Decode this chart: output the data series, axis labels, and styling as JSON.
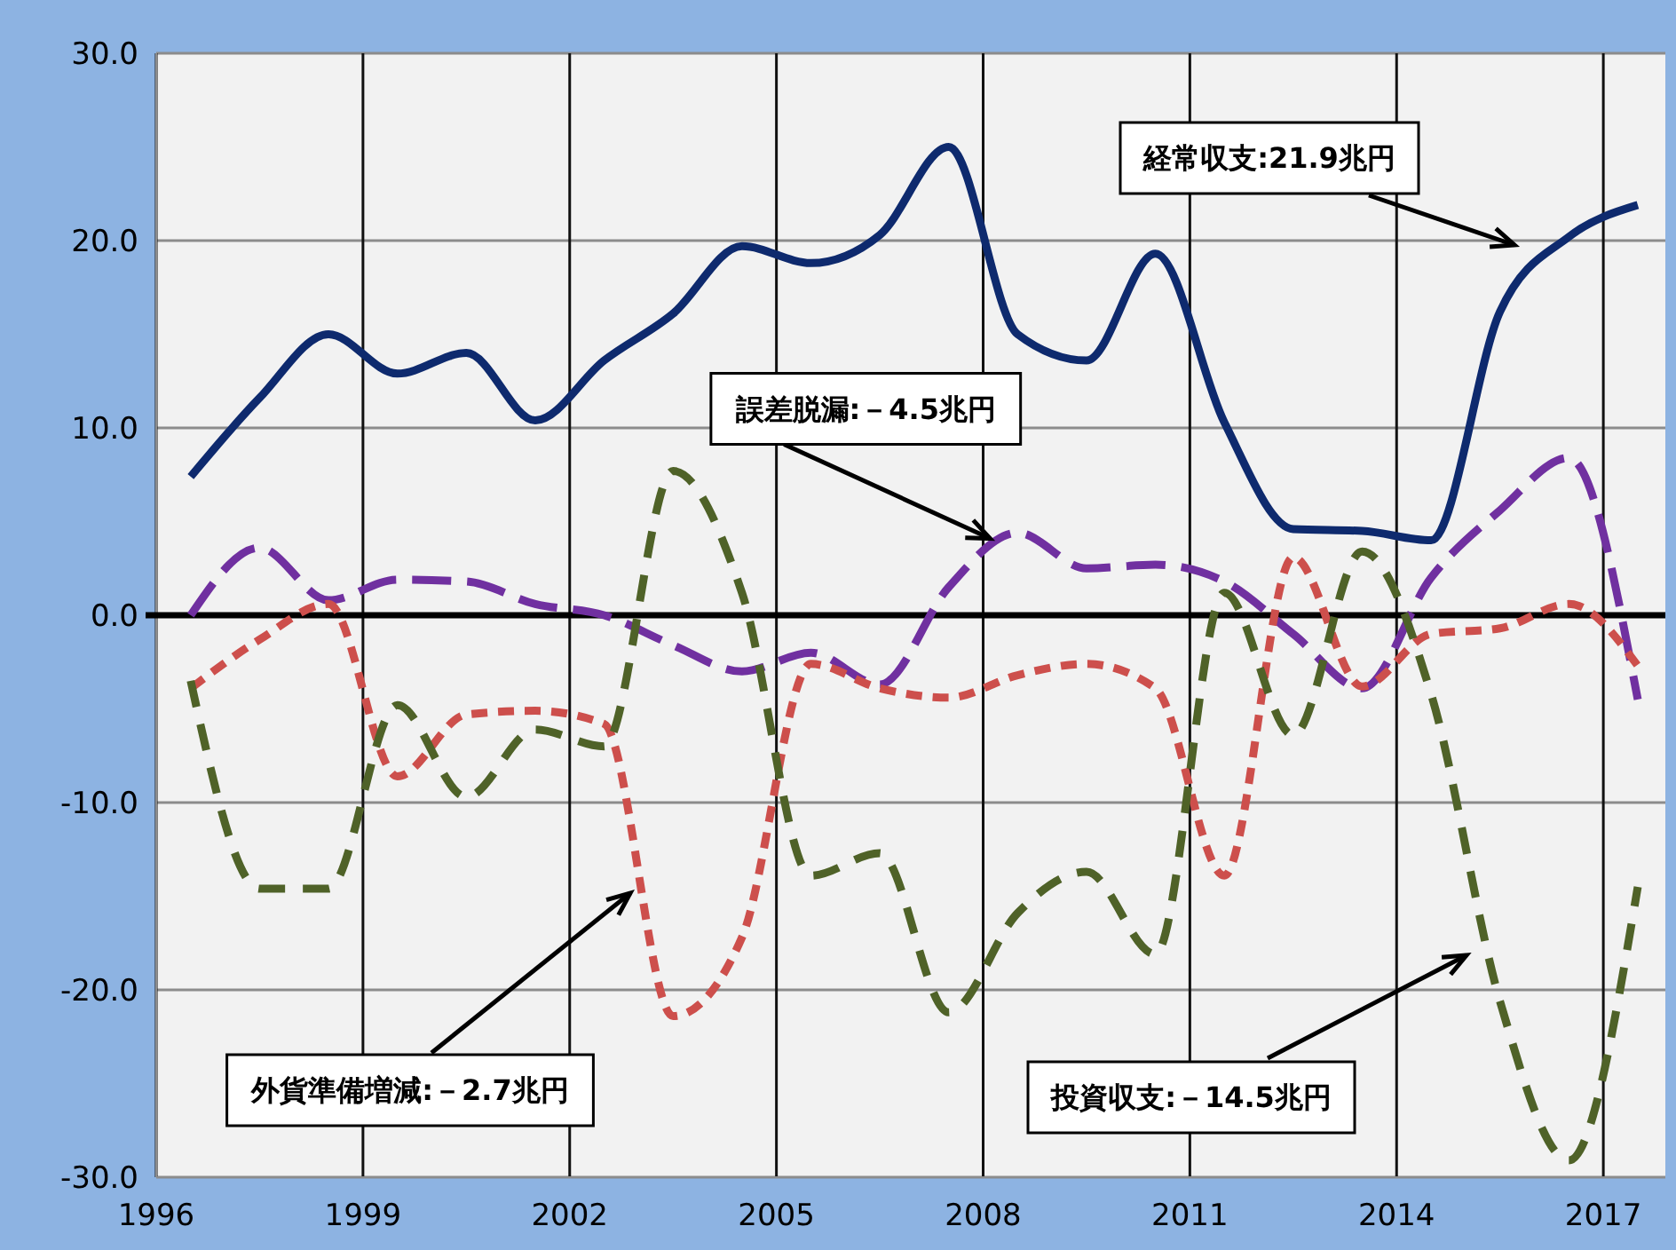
{
  "chart_data": {
    "type": "line",
    "x": [
      1996.5,
      1997.5,
      1998.5,
      1999.5,
      2000.5,
      2001.5,
      2002.5,
      2003.5,
      2004.5,
      2005.5,
      2006.5,
      2007.5,
      2008.5,
      2009.5,
      2010.5,
      2011.5,
      2012.5,
      2013.5,
      2014.5,
      2015.5,
      2016.5,
      2017.5
    ],
    "series": [
      {
        "color": "#0e2a6e",
        "line_style": "solid",
        "values": [
          7.4,
          11.6,
          15.0,
          12.9,
          14.0,
          10.4,
          13.6,
          16.1,
          19.7,
          18.8,
          20.3,
          25.0,
          15.0,
          13.6,
          19.3,
          10.3,
          4.6,
          4.5,
          4.0,
          16.2,
          20.2,
          21.9
        ]
      },
      {
        "color": "#7030a0",
        "line_style": "dashed",
        "values": [
          0.0,
          3.6,
          0.8,
          1.9,
          1.8,
          0.6,
          0.0,
          -1.6,
          -3.0,
          -2.0,
          -3.7,
          1.5,
          4.4,
          2.5,
          2.7,
          1.8,
          -1.0,
          -3.9,
          2.0,
          5.6,
          8.4,
          -4.5
        ]
      },
      {
        "color": "#cd4f4c",
        "line_style": "dashed",
        "values": [
          -3.9,
          -1.3,
          0.6,
          -8.6,
          -5.3,
          -5.1,
          -5.8,
          -21.4,
          -17.2,
          -2.6,
          -3.9,
          -4.4,
          -3.2,
          -2.6,
          -3.9,
          -13.9,
          3.1,
          -3.8,
          -1.0,
          -0.7,
          0.6,
          -2.7
        ]
      },
      {
        "color": "#4f6228",
        "line_style": "dashed",
        "values": [
          -3.5,
          -14.6,
          -14.6,
          -4.8,
          -9.7,
          -6.1,
          -7.0,
          7.7,
          1.2,
          -13.9,
          -12.7,
          -21.2,
          -15.9,
          -13.7,
          -18.1,
          1.2,
          -6.4,
          3.4,
          -4.2,
          -20.6,
          -29.1,
          -14.5
        ]
      }
    ],
    "xlim": [
      1996,
      2017.9
    ],
    "xticks": [
      1996,
      1999,
      2002,
      2005,
      2008,
      2011,
      2014,
      2017
    ],
    "ylim": [
      -30,
      30
    ],
    "yticks": [
      {
        "value": -30,
        "label": "-30.0"
      },
      {
        "value": -20,
        "label": "-20.0"
      },
      {
        "value": -10,
        "label": "-10.0"
      },
      {
        "value": 0,
        "label": "0.0"
      },
      {
        "value": 10,
        "label": "10.0"
      },
      {
        "value": 20,
        "label": "20.0"
      },
      {
        "value": 30,
        "label": "30.0"
      }
    ],
    "grid": true,
    "ref_lines": [
      {
        "axis": "y",
        "value": 0,
        "color": "#000000"
      }
    ],
    "annotations": [
      "経常収支:21.9兆円",
      {
        "text": "誤差脱漏:－4.5兆円",
        "x": 2008.1,
        "y": 4.1
      },
      "外貨準備増減:－2.7兆円",
      "投資収支:－14.5兆円"
    ]
  }
}
